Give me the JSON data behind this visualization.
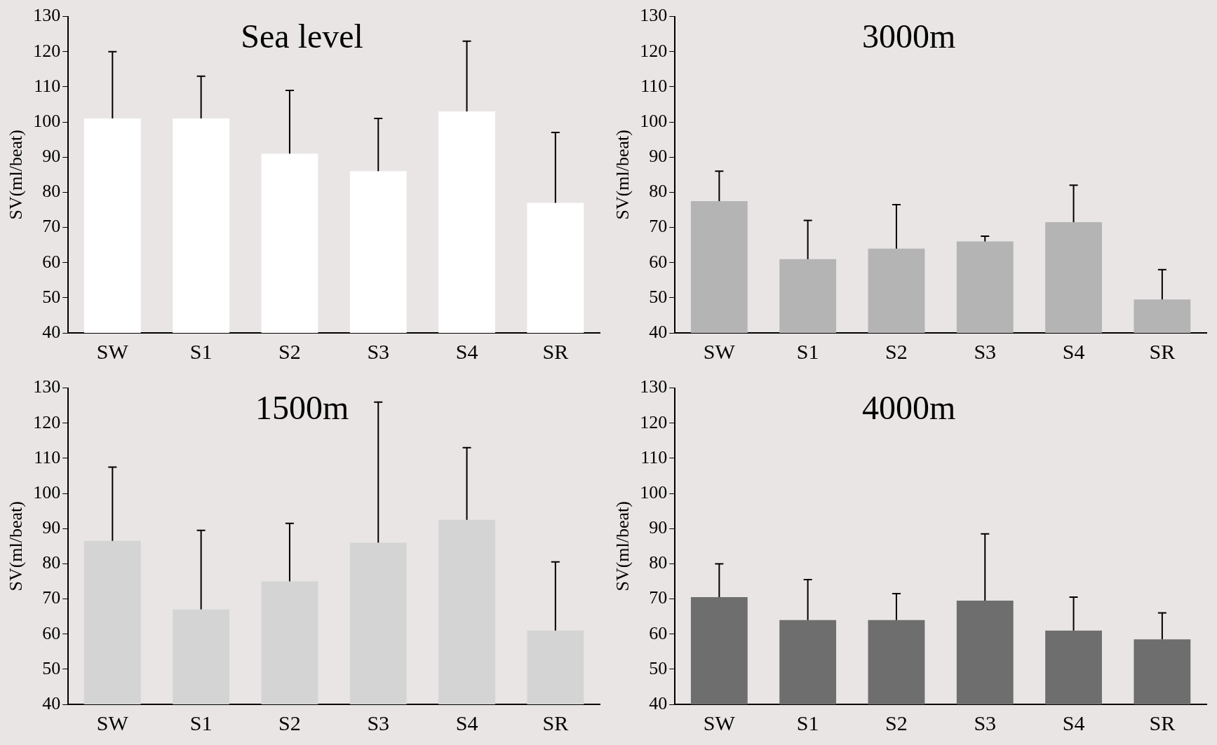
{
  "chart_data": [
    {
      "type": "bar",
      "title": "Sea level",
      "ylabel": "SV(ml/beat)",
      "categories": [
        "SW",
        "S1",
        "S2",
        "S3",
        "S4",
        "SR"
      ],
      "values": [
        101,
        101,
        91,
        86,
        103,
        77
      ],
      "errors": [
        [
          101,
          120
        ],
        [
          101,
          113
        ],
        [
          91,
          109
        ],
        [
          86,
          101
        ],
        [
          103,
          123
        ],
        [
          77,
          97
        ]
      ],
      "color": "#ffffff",
      "ylim": [
        40,
        130
      ],
      "yticks": [
        40,
        50,
        60,
        70,
        80,
        90,
        100,
        110,
        120,
        130
      ],
      "grid": false
    },
    {
      "type": "bar",
      "title": "3000m",
      "ylabel": "SV(ml/beat)",
      "categories": [
        "SW",
        "S1",
        "S2",
        "S3",
        "S4",
        "SR"
      ],
      "values": [
        77.5,
        61,
        64,
        66,
        71.5,
        49.5
      ],
      "errors": [
        [
          77.5,
          86
        ],
        [
          61,
          72
        ],
        [
          64,
          76.5
        ],
        [
          66,
          67.5
        ],
        [
          71.5,
          82
        ],
        [
          49.5,
          58
        ]
      ],
      "color": "#b4b4b4",
      "ylim": [
        40,
        130
      ],
      "yticks": [
        40,
        50,
        60,
        70,
        80,
        90,
        100,
        110,
        120,
        130
      ],
      "grid": false
    },
    {
      "type": "bar",
      "title": "1500m",
      "ylabel": "SV(ml/beat)",
      "categories": [
        "SW",
        "S1",
        "S2",
        "S3",
        "S4",
        "SR"
      ],
      "values": [
        86.5,
        67,
        75,
        86,
        92.5,
        61
      ],
      "errors": [
        [
          86.5,
          107.5
        ],
        [
          67,
          89.5
        ],
        [
          75,
          91.5
        ],
        [
          86,
          126
        ],
        [
          92.5,
          113
        ],
        [
          61,
          80.5
        ]
      ],
      "color": "#d4d4d4",
      "ylim": [
        40,
        130
      ],
      "yticks": [
        40,
        50,
        60,
        70,
        80,
        90,
        100,
        110,
        120,
        130
      ],
      "grid": false
    },
    {
      "type": "bar",
      "title": "4000m",
      "ylabel": "SV(ml/beat)",
      "categories": [
        "SW",
        "S1",
        "S2",
        "S3",
        "S4",
        "SR"
      ],
      "values": [
        70.5,
        64,
        64,
        69.5,
        61,
        58.5
      ],
      "errors": [
        [
          70.5,
          80
        ],
        [
          64,
          75.5
        ],
        [
          64,
          71.5
        ],
        [
          69.5,
          88.5
        ],
        [
          61,
          70.5
        ],
        [
          58.5,
          66
        ]
      ],
      "color": "#6e6e6e",
      "ylim": [
        40,
        130
      ],
      "yticks": [
        40,
        50,
        60,
        70,
        80,
        90,
        100,
        110,
        120,
        130
      ],
      "grid": false
    }
  ]
}
